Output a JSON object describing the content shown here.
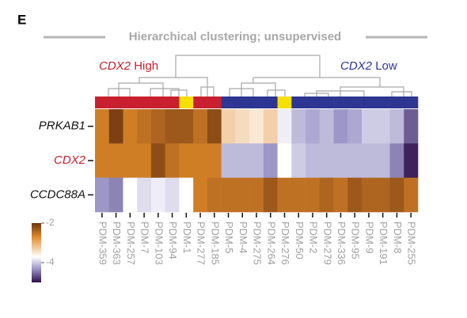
{
  "panel_label": "E",
  "chart_data": {
    "type": "heatmap",
    "title": "Hierarchical clustering; unsupervised",
    "annotations": [
      {
        "gene": "CDX2",
        "label": "High",
        "color": "#c8202e"
      },
      {
        "gene": "CDX2",
        "label": "Low",
        "color": "#2e3592"
      }
    ],
    "categories": [
      "PDM-359",
      "PDM-363",
      "PDM-257",
      "PDM-7",
      "PDM-103",
      "PDM-94",
      "PDM-1",
      "PDM-277",
      "PDM-185",
      "PDM-5",
      "PDM-4",
      "PDM-275",
      "PDM-264",
      "PDM-276",
      "PDM-50",
      "PDM-2",
      "PDM-279",
      "PDM-336",
      "PDM-95",
      "PDM-9",
      "PDM-191",
      "PDM-8",
      "PDM-255"
    ],
    "column_colors": [
      "#c8202e",
      "#c8202e",
      "#c8202e",
      "#c8202e",
      "#c8202e",
      "#c8202e",
      "#f5e000",
      "#c8202e",
      "#c8202e",
      "#2e3592",
      "#2e3592",
      "#2e3592",
      "#2e3592",
      "#f5e000",
      "#2e3592",
      "#2e3592",
      "#2e3592",
      "#2e3592",
      "#2e3592",
      "#2e3592",
      "#2e3592",
      "#2e3592",
      "#2e3592"
    ],
    "series": [
      {
        "name": "PRKAB1",
        "color": "#111111",
        "values": [
          -2.6,
          -2.1,
          -2.6,
          -2.5,
          -2.4,
          -2.3,
          -2.3,
          -2.5,
          -2.2,
          -3.3,
          -3.4,
          -3.5,
          -3.3,
          -3.8,
          -4.1,
          -4.2,
          -4.1,
          -4.3,
          -4.2,
          -4.0,
          -4.0,
          -4.1,
          -4.6
        ]
      },
      {
        "name": "CDX2",
        "color": "#c8202e",
        "values": [
          -2.6,
          -2.6,
          -2.6,
          -2.6,
          -2.2,
          -2.5,
          -2.6,
          -2.6,
          -2.6,
          -4.1,
          -4.1,
          -4.1,
          -4.3,
          -3.7,
          -4.0,
          -4.1,
          -4.1,
          -4.1,
          -4.1,
          -4.1,
          -4.1,
          -4.4,
          -4.9
        ]
      },
      {
        "name": "CCDC88A",
        "color": "#111111",
        "values": [
          -4.3,
          -4.4,
          -3.7,
          -3.9,
          -3.8,
          -3.9,
          -3.7,
          -2.6,
          -2.5,
          -2.5,
          -2.5,
          -2.5,
          -2.3,
          -2.5,
          -2.5,
          -2.5,
          -2.4,
          -2.5,
          -2.3,
          -2.4,
          -2.4,
          -2.3,
          -2.5
        ]
      }
    ],
    "colorscale": [
      [
        -2,
        "#6b3410"
      ],
      [
        -2.7,
        "#e08a2a"
      ],
      [
        -3.7,
        "#ffffff"
      ],
      [
        -4.3,
        "#9d97c8"
      ],
      [
        -5,
        "#2d0f4a"
      ]
    ],
    "clim": [
      -5,
      -2
    ],
    "cticks": [
      -2,
      -4
    ]
  }
}
